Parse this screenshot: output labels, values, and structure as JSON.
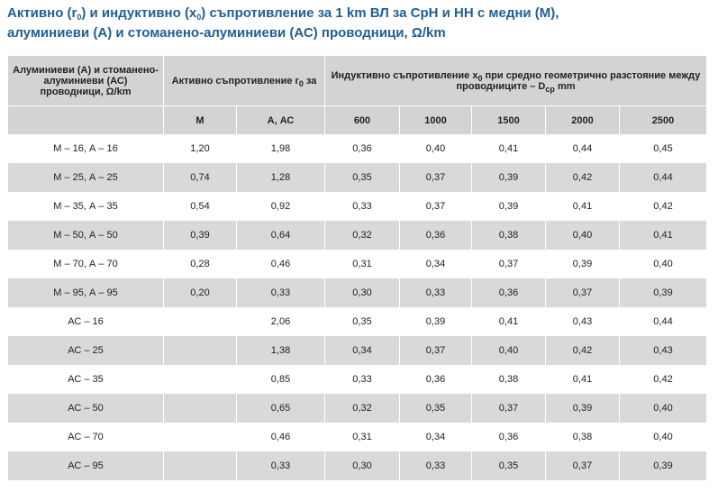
{
  "title": [
    [
      "Активно (r",
      "0",
      ") и индуктивно (x",
      "0",
      ") съпротивление за 1 km ВЛ за СрН и НН с медни (М),"
    ],
    [
      "алуминиеви (А) и стоманено-алуминиеви (АС) проводници, Ω/km"
    ]
  ],
  "table": {
    "header": [
      [
        [
          "Алуминиеви (А) и стоманено-алуминиеви (АС) проводници, Ω/km"
        ],
        [
          "Активно съпротивление r",
          "0",
          " за"
        ],
        [
          "Индуктивно съпротивление x",
          "0",
          " при средно геометрично разстояние между проводниците – D",
          "ср",
          " mm"
        ]
      ],
      [
        null,
        [
          "М"
        ],
        [
          "А, АС"
        ],
        [
          "600"
        ],
        [
          "1000"
        ],
        [
          "1500"
        ],
        [
          "2000"
        ],
        [
          "2500"
        ]
      ]
    ],
    "rows": [
      [
        "М – 16, А – 16",
        "1,20",
        "1,98",
        "0,36",
        "0,40",
        "0,41",
        "0,44",
        "0,45"
      ],
      [
        "М – 25, А – 25",
        "0,74",
        "1,28",
        "0,35",
        "0,37",
        "0,39",
        "0,42",
        "0,44"
      ],
      [
        "М – 35, А – 35",
        "0,54",
        "0,92",
        "0,33",
        "0,37",
        "0,39",
        "0,41",
        "0,42"
      ],
      [
        "М – 50, А – 50",
        "0,39",
        "0,64",
        "0,32",
        "0,36",
        "0,38",
        "0,40",
        "0,41"
      ],
      [
        "М – 70, А – 70",
        "0,28",
        "0,46",
        "0,31",
        "0,34",
        "0,37",
        "0,39",
        "0,40"
      ],
      [
        "М – 95, А – 95",
        "0,20",
        "0,33",
        "0,30",
        "0,33",
        "0,36",
        "0,37",
        "0,39"
      ],
      [
        "АС – 16",
        null,
        "2,06",
        "0,35",
        "0,39",
        "0,41",
        "0,43",
        "0,44"
      ],
      [
        "АС – 25",
        null,
        "1,38",
        "0,34",
        "0,37",
        "0,40",
        "0,42",
        "0,43"
      ],
      [
        "АС – 35",
        null,
        "0,85",
        "0,33",
        "0,36",
        "0,38",
        "0,41",
        "0,42"
      ],
      [
        "АС – 50",
        null,
        "0,65",
        "0,32",
        "0,35",
        "0,37",
        "0,39",
        "0,40"
      ],
      [
        "АС – 70",
        null,
        "0,46",
        "0,31",
        "0,34",
        "0,36",
        "0,38",
        "0,40"
      ],
      [
        "АС – 95",
        null,
        "0,33",
        "0,30",
        "0,33",
        "0,35",
        "0,37",
        "0,39"
      ]
    ]
  }
}
